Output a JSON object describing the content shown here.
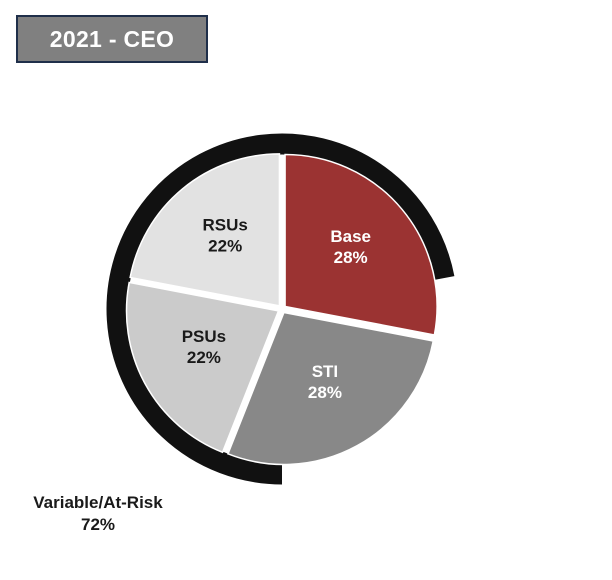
{
  "header": {
    "title": "2021 - CEO"
  },
  "chart_data": {
    "type": "pie",
    "slices": [
      {
        "label": "Base",
        "pct": "28%",
        "value": 28,
        "color": "#9b3332",
        "text_color": "#ffffff"
      },
      {
        "label": "STI",
        "pct": "28%",
        "value": 28,
        "color": "#888888",
        "text_color": "#ffffff"
      },
      {
        "label": "PSUs",
        "pct": "22%",
        "value": 22,
        "color": "#cbcbcb",
        "text_color": "#1a1a1a"
      },
      {
        "label": "RSUs",
        "pct": "22%",
        "value": 22,
        "color": "#e2e2e2",
        "text_color": "#1a1a1a"
      }
    ],
    "ring": {
      "label": "Variable/At-Risk",
      "pct": "72%",
      "value": 72,
      "color": "#111111"
    }
  }
}
